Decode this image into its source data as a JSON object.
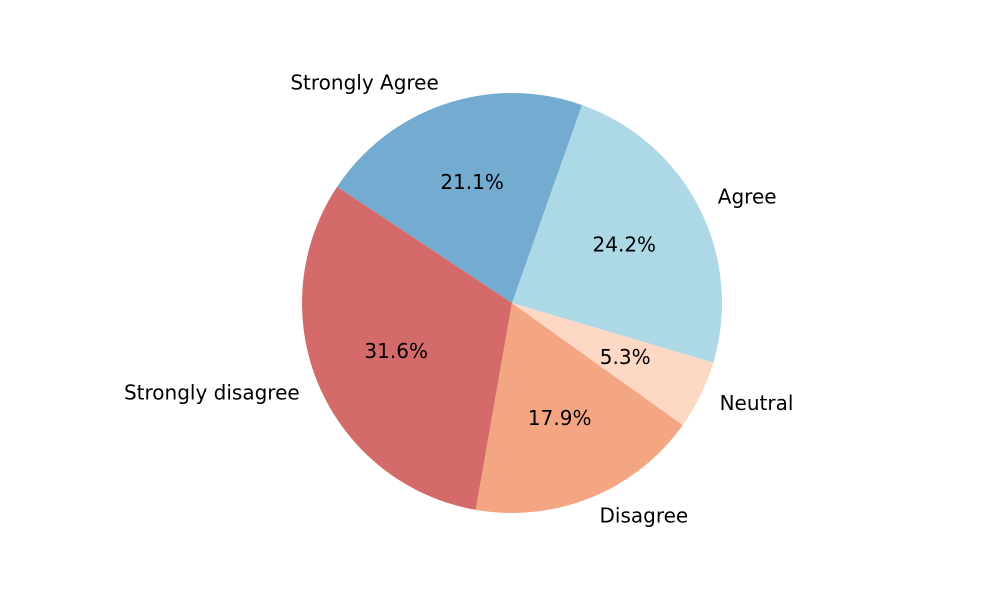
{
  "chart_data": {
    "type": "pie",
    "title": "",
    "categories": [
      "Agree",
      "Strongly Agree",
      "Strongly disagree",
      "Disagree",
      "Neutral"
    ],
    "values": [
      24.2,
      21.1,
      31.6,
      17.9,
      5.3
    ],
    "percent_labels": [
      "24.2%",
      "21.1%",
      "31.6%",
      "17.9%",
      "5.3%"
    ],
    "colors": [
      "#add8e6",
      "#74acd1",
      "#d46a6a",
      "#f4a582",
      "#fdd9c5"
    ],
    "start_angle_deg": -16.5,
    "direction": "counterclockwise",
    "legend": "none"
  }
}
